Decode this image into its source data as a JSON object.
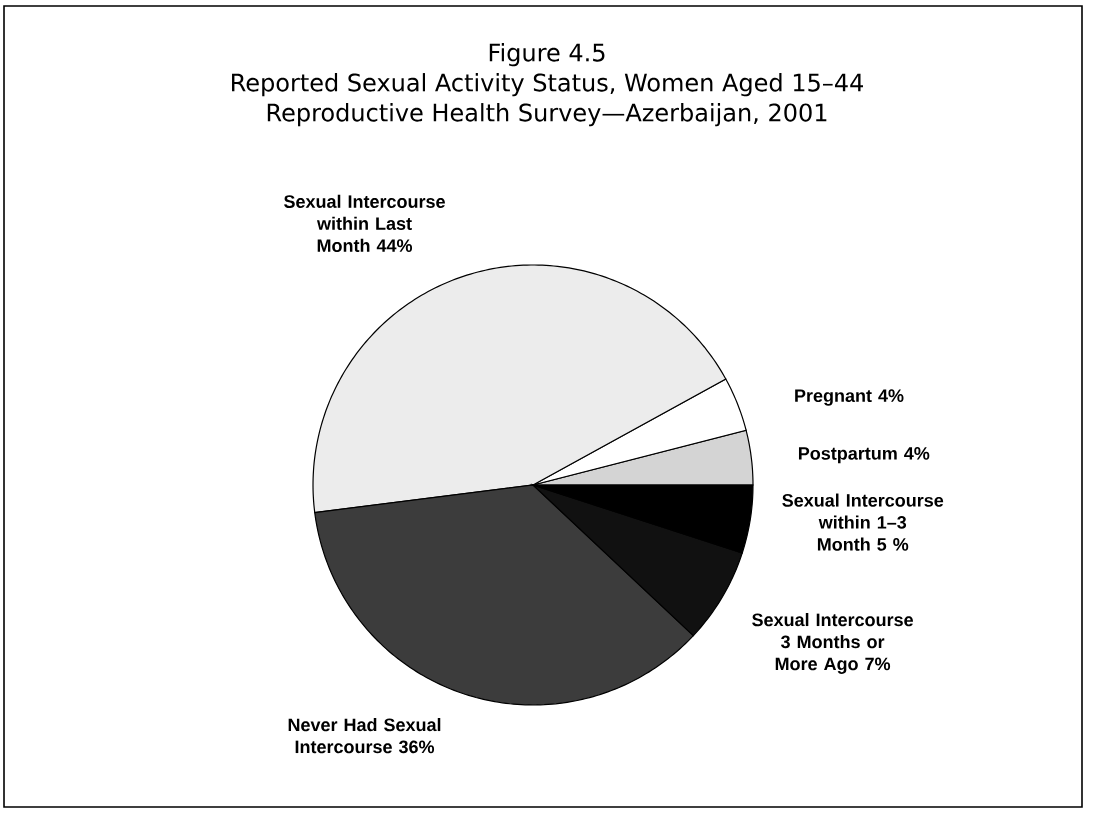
{
  "chart_data": {
    "type": "pie",
    "title": "Figure 4.5",
    "subtitle": "Reported Sexual Activity Status, Women Aged 15–44",
    "annotations": [
      "Reproductive Health Survey—Azerbaijan, 2001"
    ],
    "categories": [
      "Postpartum",
      "Pregnant",
      "Sexual Intercourse within Last Month",
      "Never Had Sexual Intercourse",
      "Sexual Intercourse 3 Months or More Ago",
      "Sexual Intercourse within 1–3 Month"
    ],
    "values": [
      4,
      4,
      44,
      36,
      7,
      5
    ],
    "value_labels": [
      "4%",
      "4%",
      "44%",
      "36%",
      "7%",
      "5 %"
    ],
    "colors": [
      "#d4d4d4",
      "#ffffff",
      "#ececec",
      "#3c3c3c",
      "#111111",
      "#000000"
    ]
  }
}
